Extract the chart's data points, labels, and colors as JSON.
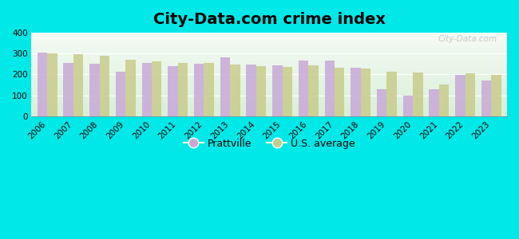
{
  "title": "City-Data.com crime index",
  "years": [
    2006,
    2007,
    2008,
    2009,
    2010,
    2011,
    2012,
    2013,
    2014,
    2015,
    2016,
    2017,
    2018,
    2019,
    2020,
    2021,
    2022,
    2023
  ],
  "prattville": [
    305,
    257,
    252,
    215,
    257,
    238,
    252,
    283,
    246,
    244,
    268,
    265,
    234,
    130,
    100,
    130,
    198,
    170
  ],
  "us_average": [
    302,
    299,
    288,
    272,
    261,
    257,
    254,
    246,
    238,
    237,
    242,
    233,
    228,
    215,
    208,
    153,
    207,
    197
  ],
  "bar_color_prattville": "#c9a8d8",
  "bar_color_us": "#c8cc8a",
  "outer_bg": "#00e8e8",
  "ylim": [
    0,
    400
  ],
  "yticks": [
    0,
    100,
    200,
    300,
    400
  ],
  "legend_prattville": "Prattville",
  "legend_us": "U.S. average",
  "bar_width": 0.38,
  "title_fontsize": 14,
  "tick_fontsize": 7.5,
  "watermark_text": "City-Data.com",
  "bg_top": "#f5fbf5",
  "bg_bottom": "#d8efd8"
}
